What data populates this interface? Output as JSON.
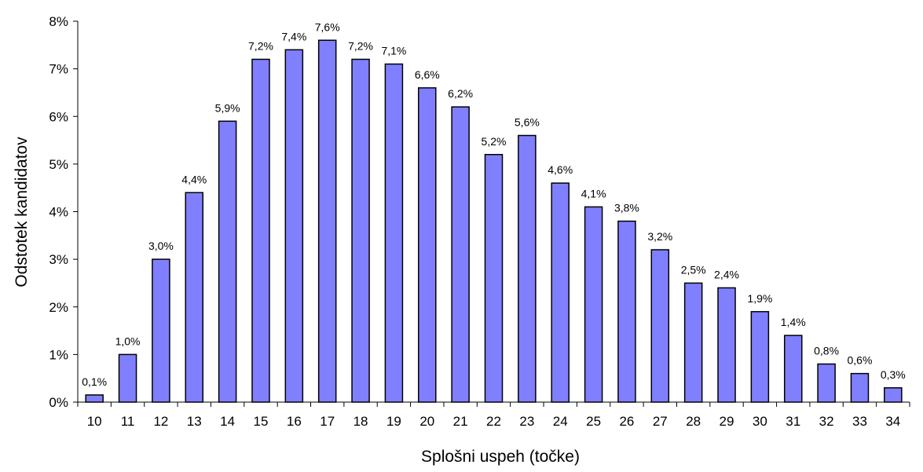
{
  "chart_data": {
    "type": "bar",
    "title": "",
    "xlabel": "Splošni uspeh (točke)",
    "ylabel": "Odstotek kandidatov",
    "categories": [
      "10",
      "11",
      "12",
      "13",
      "14",
      "15",
      "16",
      "17",
      "18",
      "19",
      "20",
      "21",
      "22",
      "23",
      "24",
      "25",
      "26",
      "27",
      "28",
      "29",
      "30",
      "31",
      "32",
      "33",
      "34"
    ],
    "values": [
      0.15,
      1.0,
      3.0,
      4.4,
      5.9,
      7.2,
      7.4,
      7.6,
      7.2,
      7.1,
      6.6,
      6.2,
      5.2,
      5.6,
      4.6,
      4.1,
      3.8,
      3.2,
      2.5,
      2.4,
      1.9,
      1.4,
      0.8,
      0.6,
      0.3
    ],
    "data_labels": [
      "0,1%",
      "1,0%",
      "3,0%",
      "4,4%",
      "5,9%",
      "7,2%",
      "7,4%",
      "7,6%",
      "7,2%",
      "7,1%",
      "6,6%",
      "6,2%",
      "5,2%",
      "5,6%",
      "4,6%",
      "4,1%",
      "3,8%",
      "3,2%",
      "2,5%",
      "2,4%",
      "1,9%",
      "1,4%",
      "0,8%",
      "0,6%",
      "0,3%"
    ],
    "ylim": [
      0,
      8
    ],
    "yticks": [
      "0%",
      "1%",
      "2%",
      "3%",
      "4%",
      "5%",
      "6%",
      "7%",
      "8%"
    ],
    "grid": false,
    "legend": "none",
    "bar_color": "#8080FF",
    "bar_edge_color": "#000000"
  }
}
